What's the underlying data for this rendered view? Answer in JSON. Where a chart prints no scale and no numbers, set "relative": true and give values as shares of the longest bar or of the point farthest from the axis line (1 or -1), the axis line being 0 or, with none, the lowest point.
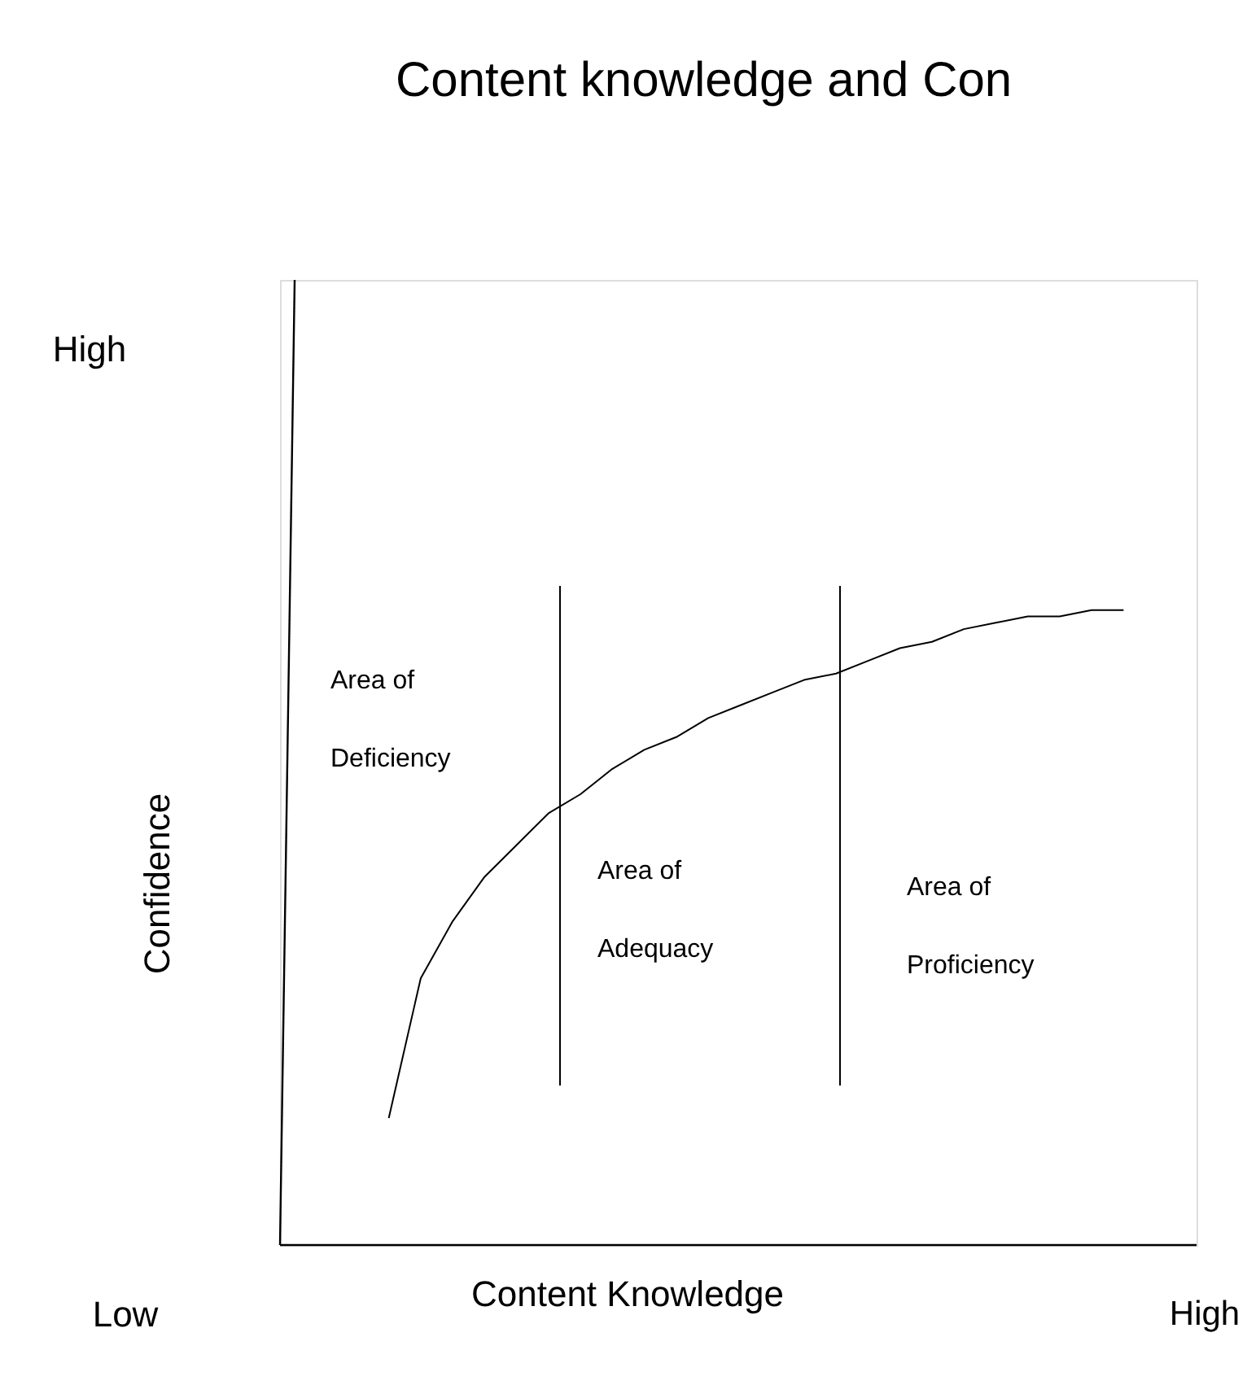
{
  "chart_data": {
    "type": "line",
    "title": "Content knowledge and Con",
    "xlabel": "Content Knowledge",
    "relative": true,
    "color": "#000000",
    "categories": [
      null,
      null,
      null,
      null,
      null,
      null,
      null,
      null,
      null,
      null,
      null,
      null,
      null,
      null,
      null,
      null,
      null,
      null,
      null,
      null,
      null,
      null,
      null,
      null
    ],
    "values": [
      0.2,
      0.42,
      0.51,
      0.58,
      0.63,
      0.68,
      0.71,
      0.75,
      0.78,
      0.8,
      0.83,
      0.85,
      0.87,
      0.89,
      0.9,
      0.92,
      0.94,
      0.95,
      0.97,
      0.98,
      0.99,
      0.99,
      1.0,
      1.0
    ],
    "ref_lines": [
      {
        "axis": "x",
        "color": "#000000"
      },
      {
        "axis": "x",
        "color": "#000000"
      }
    ],
    "annotations": [
      "Low",
      "High",
      "High",
      "Area of\nDeficiency",
      "Area of\nAdequacy",
      "Area of\nProficiency",
      "Confidence"
    ]
  }
}
